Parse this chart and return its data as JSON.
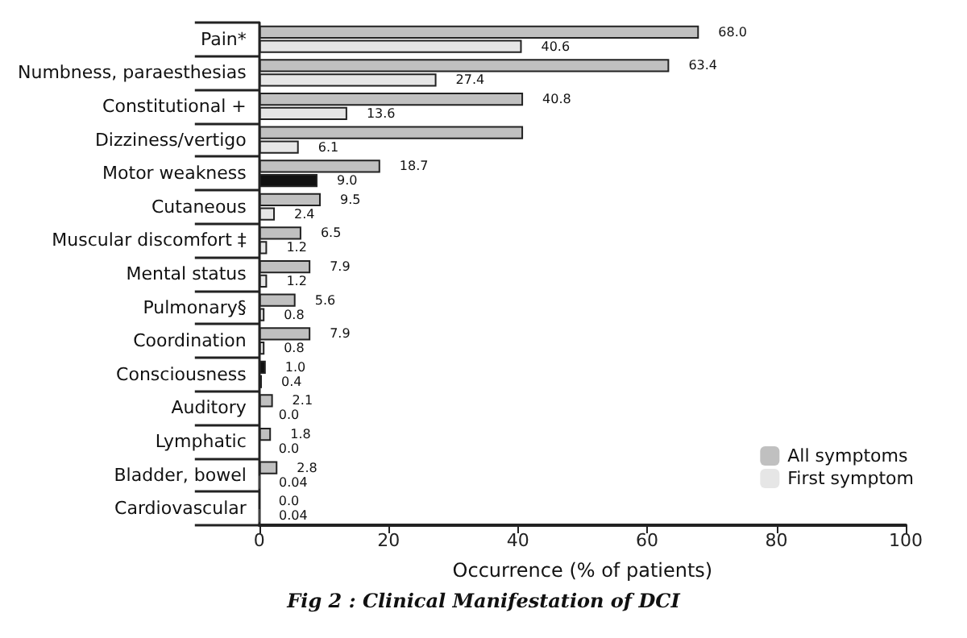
{
  "chart_data": {
    "type": "bar",
    "orientation": "horizontal",
    "title": "Fig 2 : Clinical Manifestation of DCI",
    "xlabel": "Occurrence (% of patients)",
    "categories": [
      "Pain*",
      "Numbness, paraesthesias",
      "Constitutional +",
      "Dizziness/vertigo",
      "Motor weakness",
      "Cutaneous",
      "Muscular discomfort ‡",
      "Mental status",
      "Pulmonary§",
      "Coordination",
      "Consciousness",
      "Auditory",
      "Lymphatic",
      "Bladder, bowel",
      "Cardiovascular"
    ],
    "series": [
      {
        "name": "All symptoms",
        "color": "#c0c0c0",
        "colors": [
          "#c0c0c0",
          "#c0c0c0",
          "#c0c0c0",
          "#c0c0c0",
          "#c0c0c0",
          "#c0c0c0",
          "#c0c0c0",
          "#c0c0c0",
          "#c0c0c0",
          "#c0c0c0",
          "#111111",
          "#c0c0c0",
          "#c0c0c0",
          "#c0c0c0",
          "#c0c0c0"
        ],
        "values": [
          68.0,
          63.4,
          40.8,
          40.8,
          18.7,
          9.5,
          6.5,
          7.9,
          5.6,
          7.9,
          1.0,
          2.1,
          1.8,
          2.8,
          0.0
        ],
        "value_labels": [
          "68.0",
          "63.4",
          "40.8",
          null,
          "18.7",
          "9.5",
          "6.5",
          "7.9",
          "5.6",
          "7.9",
          "1.0",
          "2.1",
          "1.8",
          "2.8",
          "0.0"
        ]
      },
      {
        "name": "First symptom",
        "color": "#e6e6e6",
        "colors": [
          "#e6e6e6",
          "#e6e6e6",
          "#e6e6e6",
          "#e6e6e6",
          "#111111",
          "#e6e6e6",
          "#e6e6e6",
          "#e6e6e6",
          "#e6e6e6",
          "#e6e6e6",
          "#e6e6e6",
          "#e6e6e6",
          "#e6e6e6",
          "#e6e6e6",
          "#e6e6e6"
        ],
        "values": [
          40.6,
          27.4,
          13.6,
          6.1,
          9.0,
          2.4,
          1.2,
          1.2,
          0.8,
          0.8,
          0.4,
          0.0,
          0.0,
          0.04,
          0.04
        ],
        "value_labels": [
          "40.6",
          "27.4",
          "13.6",
          "6.1",
          "9.0",
          "2.4",
          "1.2",
          "1.2",
          "0.8",
          "0.8",
          "0.4",
          "0.0",
          "0.0",
          "0.04",
          "0.04"
        ]
      }
    ],
    "xlim": [
      0,
      100
    ],
    "xticks": [
      0,
      20,
      40,
      60,
      80,
      100
    ],
    "legend": "bottom right",
    "grid": false
  }
}
